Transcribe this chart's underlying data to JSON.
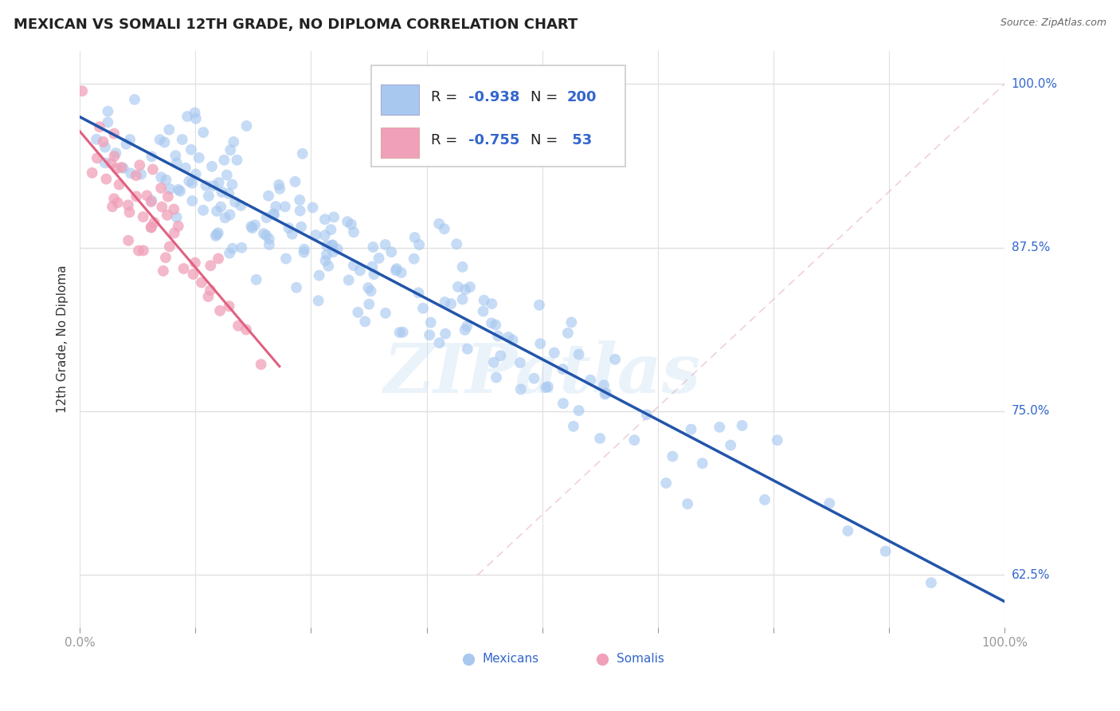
{
  "title": "MEXICAN VS SOMALI 12TH GRADE, NO DIPLOMA CORRELATION CHART",
  "source": "Source: ZipAtlas.com",
  "ylabel": "12th Grade, No Diploma",
  "xlim": [
    0.0,
    1.0
  ],
  "ylim": [
    0.585,
    1.025
  ],
  "xticks": [
    0.0,
    0.125,
    0.25,
    0.375,
    0.5,
    0.625,
    0.75,
    0.875,
    1.0
  ],
  "xticklabels": [
    "0.0%",
    "",
    "",
    "",
    "",
    "",
    "",
    "",
    "100.0%"
  ],
  "ytick_positions": [
    0.625,
    0.75,
    0.875,
    1.0
  ],
  "ytick_labels": [
    "62.5%",
    "75.0%",
    "87.5%",
    "100.0%"
  ],
  "background_color": "#ffffff",
  "grid_color": "#e0e0e0",
  "watermark": "ZIPatlas",
  "legend_R_mexican": "-0.938",
  "legend_N_mexican": "200",
  "legend_R_somali": "-0.755",
  "legend_N_somali": " 53",
  "mexican_color": "#a8c8f0",
  "somali_color": "#f0a0b8",
  "mexican_line_color": "#2255aa",
  "somali_line_color": "#e06080",
  "axis_color": "#3366cc",
  "title_fontsize": 13,
  "mexican_seed": 42,
  "somali_seed": 99,
  "n_mexican": 200,
  "n_somali": 53
}
